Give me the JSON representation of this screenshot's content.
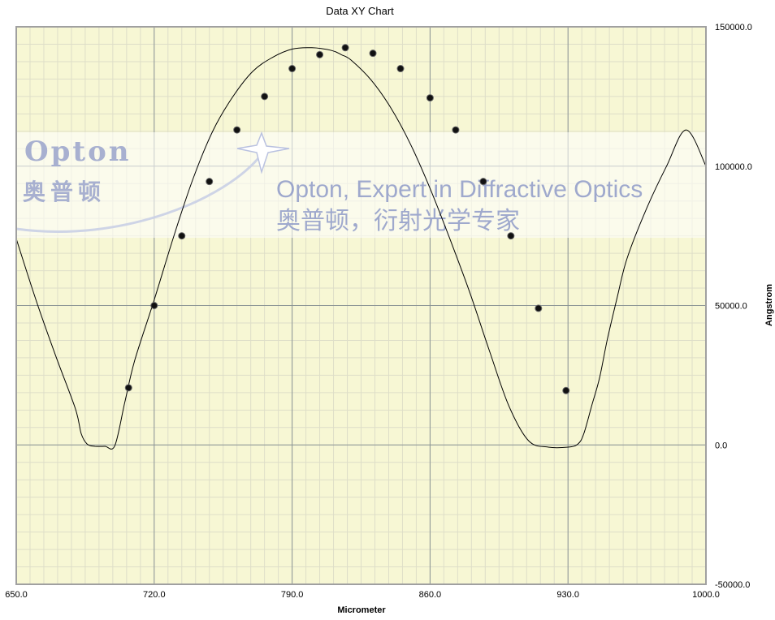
{
  "chart_data": {
    "type": "line",
    "title": "Data XY Chart",
    "xlabel": "Micrometer",
    "ylabel": "Angstrom",
    "xlim": [
      650,
      1000
    ],
    "ylim": [
      -50000,
      150000
    ],
    "x_ticks": [
      "650.0",
      "720.0",
      "790.0",
      "860.0",
      "930.0",
      "1000.0"
    ],
    "y_ticks": [
      "-50000.0",
      "0.0",
      "50000.0",
      "100000.0",
      "150000.0"
    ],
    "grid": true,
    "background_color": "#f7f7d4",
    "curve": {
      "x": [
        650,
        660,
        670,
        680,
        683,
        686,
        690,
        695,
        700,
        705,
        710,
        720,
        730,
        740,
        750,
        760,
        770,
        780,
        790,
        800,
        810,
        815,
        820,
        830,
        840,
        850,
        860,
        870,
        880,
        890,
        900,
        910,
        920,
        930,
        935,
        938,
        942,
        946,
        950,
        955,
        960,
        970,
        980,
        990,
        1000
      ],
      "y": [
        74000,
        52000,
        32000,
        13000,
        4000,
        300,
        -500,
        -500,
        -300,
        15000,
        30000,
        52000,
        75000,
        96000,
        113000,
        125000,
        134000,
        139000,
        142000,
        142500,
        141500,
        140000,
        138000,
        131000,
        121000,
        108000,
        92000,
        74000,
        55000,
        34000,
        14000,
        1500,
        -800,
        -800,
        300,
        4000,
        14000,
        24000,
        38000,
        53000,
        67000,
        85000,
        100000,
        113000,
        100000
      ]
    },
    "points": {
      "x": [
        707,
        720,
        734,
        748,
        762,
        776,
        790,
        804,
        817,
        831,
        845,
        860,
        873,
        887,
        901,
        915,
        929
      ],
      "y": [
        20500,
        50000,
        75000,
        94500,
        113000,
        125000,
        135000,
        140000,
        142500,
        140500,
        135000,
        124500,
        113000,
        94500,
        75000,
        49000,
        19500
      ]
    }
  },
  "watermark": {
    "logo": "Opton",
    "logo_cn": "奥普顿",
    "slogan_en": "Opton, Expert in Diffractive Optics",
    "slogan_cn": "奥普顿，衍射光学专家"
  }
}
